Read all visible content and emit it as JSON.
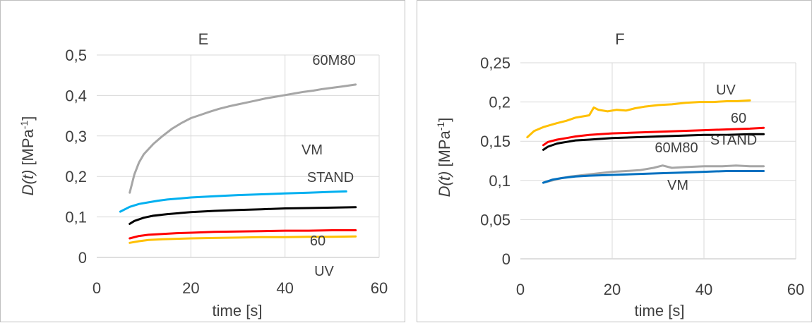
{
  "chart_data": [
    {
      "type": "line",
      "title": "E",
      "xlabel": "time [s]",
      "ylabel": {
        "var": "D(t)",
        "unit_pre": " [MPa",
        "unit_sup": "-1",
        "unit_post": "]"
      },
      "xlim": [
        0,
        60
      ],
      "ylim": [
        0,
        0.5
      ],
      "x_ticks": [
        "0",
        "20",
        "40",
        "60"
      ],
      "y_ticks": [
        "0",
        "0,1",
        "0,2",
        "0,3",
        "0,4",
        "0,5"
      ],
      "grid": true,
      "series": [
        {
          "name": "60M80",
          "color": "#a6a6a6",
          "x": [
            7,
            8,
            9,
            10,
            12,
            14,
            16,
            18,
            20,
            22,
            24,
            26,
            28,
            30,
            32,
            34,
            36,
            38,
            40,
            42,
            44,
            46,
            48,
            50,
            52,
            55
          ],
          "y": [
            0.16,
            0.205,
            0.235,
            0.255,
            0.28,
            0.3,
            0.318,
            0.332,
            0.344,
            0.352,
            0.36,
            0.367,
            0.373,
            0.378,
            0.383,
            0.388,
            0.393,
            0.397,
            0.401,
            0.405,
            0.409,
            0.412,
            0.416,
            0.419,
            0.422,
            0.427
          ]
        },
        {
          "name": "VM",
          "color": "#00b0f0",
          "x": [
            5,
            7,
            9,
            11,
            13,
            15,
            17,
            20,
            25,
            30,
            35,
            40,
            45,
            50,
            53
          ],
          "y": [
            0.113,
            0.125,
            0.132,
            0.136,
            0.14,
            0.143,
            0.145,
            0.148,
            0.151,
            0.154,
            0.156,
            0.158,
            0.16,
            0.162,
            0.163
          ]
        },
        {
          "name": "STAND",
          "color": "#000000",
          "x": [
            7,
            8,
            10,
            12,
            15,
            18,
            20,
            25,
            30,
            35,
            40,
            45,
            50,
            55
          ],
          "y": [
            0.083,
            0.09,
            0.098,
            0.103,
            0.107,
            0.11,
            0.112,
            0.115,
            0.117,
            0.119,
            0.121,
            0.122,
            0.123,
            0.124
          ]
        },
        {
          "name": "60",
          "color": "#ff0000",
          "x": [
            7,
            9,
            11,
            14,
            17,
            20,
            25,
            30,
            35,
            40,
            45,
            50,
            55
          ],
          "y": [
            0.047,
            0.053,
            0.056,
            0.058,
            0.06,
            0.061,
            0.063,
            0.064,
            0.065,
            0.066,
            0.066,
            0.067,
            0.067
          ]
        },
        {
          "name": "UV",
          "color": "#ffc000",
          "x": [
            7,
            9,
            11,
            14,
            17,
            20,
            25,
            30,
            35,
            40,
            45,
            50,
            55
          ],
          "y": [
            0.036,
            0.04,
            0.043,
            0.045,
            0.046,
            0.047,
            0.048,
            0.049,
            0.05,
            0.05,
            0.051,
            0.051,
            0.052
          ]
        }
      ],
      "labels": [
        "60M80",
        "VM",
        "STAND",
        "60",
        "UV"
      ]
    },
    {
      "type": "line",
      "title": "F",
      "xlabel": "time [s]",
      "ylabel": {
        "var": "D(t)",
        "unit_pre": " [MPa",
        "unit_sup": "-1",
        "unit_post": "]"
      },
      "xlim": [
        0,
        60
      ],
      "ylim": [
        0,
        0.25
      ],
      "x_ticks": [
        "0",
        "20",
        "40",
        "60"
      ],
      "y_ticks": [
        "0",
        "0,05",
        "0,1",
        "0,15",
        "0,2",
        "0,25"
      ],
      "grid": true,
      "series": [
        {
          "name": "UV",
          "color": "#ffc000",
          "x": [
            1.5,
            3,
            5,
            8,
            10,
            12,
            14,
            15,
            16,
            17,
            19,
            21,
            23,
            25,
            27,
            30,
            33,
            36,
            39,
            42,
            45,
            47,
            50
          ],
          "y": [
            0.155,
            0.163,
            0.168,
            0.173,
            0.176,
            0.18,
            0.182,
            0.183,
            0.193,
            0.19,
            0.188,
            0.19,
            0.189,
            0.192,
            0.194,
            0.196,
            0.197,
            0.199,
            0.2,
            0.2,
            0.201,
            0.201,
            0.202
          ]
        },
        {
          "name": "60",
          "color": "#ff0000",
          "x": [
            5,
            6,
            8,
            10,
            12,
            15,
            20,
            25,
            30,
            35,
            40,
            45,
            50,
            53
          ],
          "y": [
            0.145,
            0.149,
            0.152,
            0.154,
            0.156,
            0.158,
            0.16,
            0.161,
            0.162,
            0.163,
            0.164,
            0.165,
            0.166,
            0.167
          ]
        },
        {
          "name": "STAND",
          "color": "#000000",
          "x": [
            5,
            6,
            8,
            10,
            12,
            15,
            20,
            25,
            30,
            35,
            40,
            45,
            50,
            53
          ],
          "y": [
            0.139,
            0.143,
            0.147,
            0.149,
            0.151,
            0.152,
            0.154,
            0.155,
            0.156,
            0.157,
            0.158,
            0.158,
            0.159,
            0.159
          ]
        },
        {
          "name": "60M80",
          "color": "#a6a6a6",
          "x": [
            5,
            7,
            9,
            11,
            14,
            17,
            20,
            23,
            26,
            29,
            31,
            33,
            36,
            40,
            44,
            47,
            50,
            53
          ],
          "y": [
            0.097,
            0.1,
            0.103,
            0.105,
            0.107,
            0.109,
            0.111,
            0.112,
            0.113,
            0.116,
            0.119,
            0.116,
            0.117,
            0.118,
            0.118,
            0.119,
            0.118,
            0.118
          ]
        },
        {
          "name": "VM",
          "color": "#0070c0",
          "x": [
            5,
            7,
            9,
            12,
            15,
            20,
            25,
            30,
            35,
            40,
            45,
            50,
            53
          ],
          "y": [
            0.097,
            0.101,
            0.103,
            0.105,
            0.106,
            0.107,
            0.108,
            0.109,
            0.11,
            0.111,
            0.112,
            0.112,
            0.112
          ]
        }
      ],
      "labels": [
        "UV",
        "60",
        "STAND",
        "60M80",
        "VM"
      ]
    }
  ]
}
